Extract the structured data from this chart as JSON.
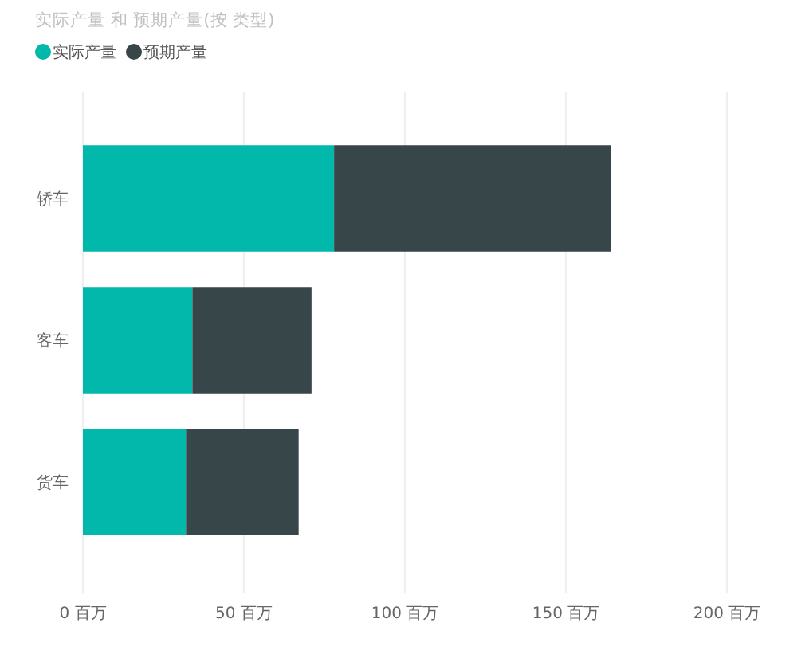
{
  "chart_data": {
    "type": "bar",
    "orientation": "horizontal",
    "stacked": true,
    "title": "实际产量 和 预期产量(按 类型)",
    "categories": [
      "轿车",
      "客车",
      "货车"
    ],
    "series": [
      {
        "name": "实际产量",
        "color": "#01b8aa",
        "values": [
          78,
          34,
          32
        ]
      },
      {
        "name": "预期产量",
        "color": "#374649",
        "values": [
          86,
          37,
          35
        ]
      }
    ],
    "xlim": [
      0,
      200
    ],
    "xticks": [
      {
        "value": 0,
        "label": "0 百万"
      },
      {
        "value": 50,
        "label": "50 百万"
      },
      {
        "value": 100,
        "label": "100 百万"
      },
      {
        "value": 150,
        "label": "150 百万"
      },
      {
        "value": 200,
        "label": "200 百万"
      }
    ],
    "grid": "x",
    "legend": "top left"
  }
}
